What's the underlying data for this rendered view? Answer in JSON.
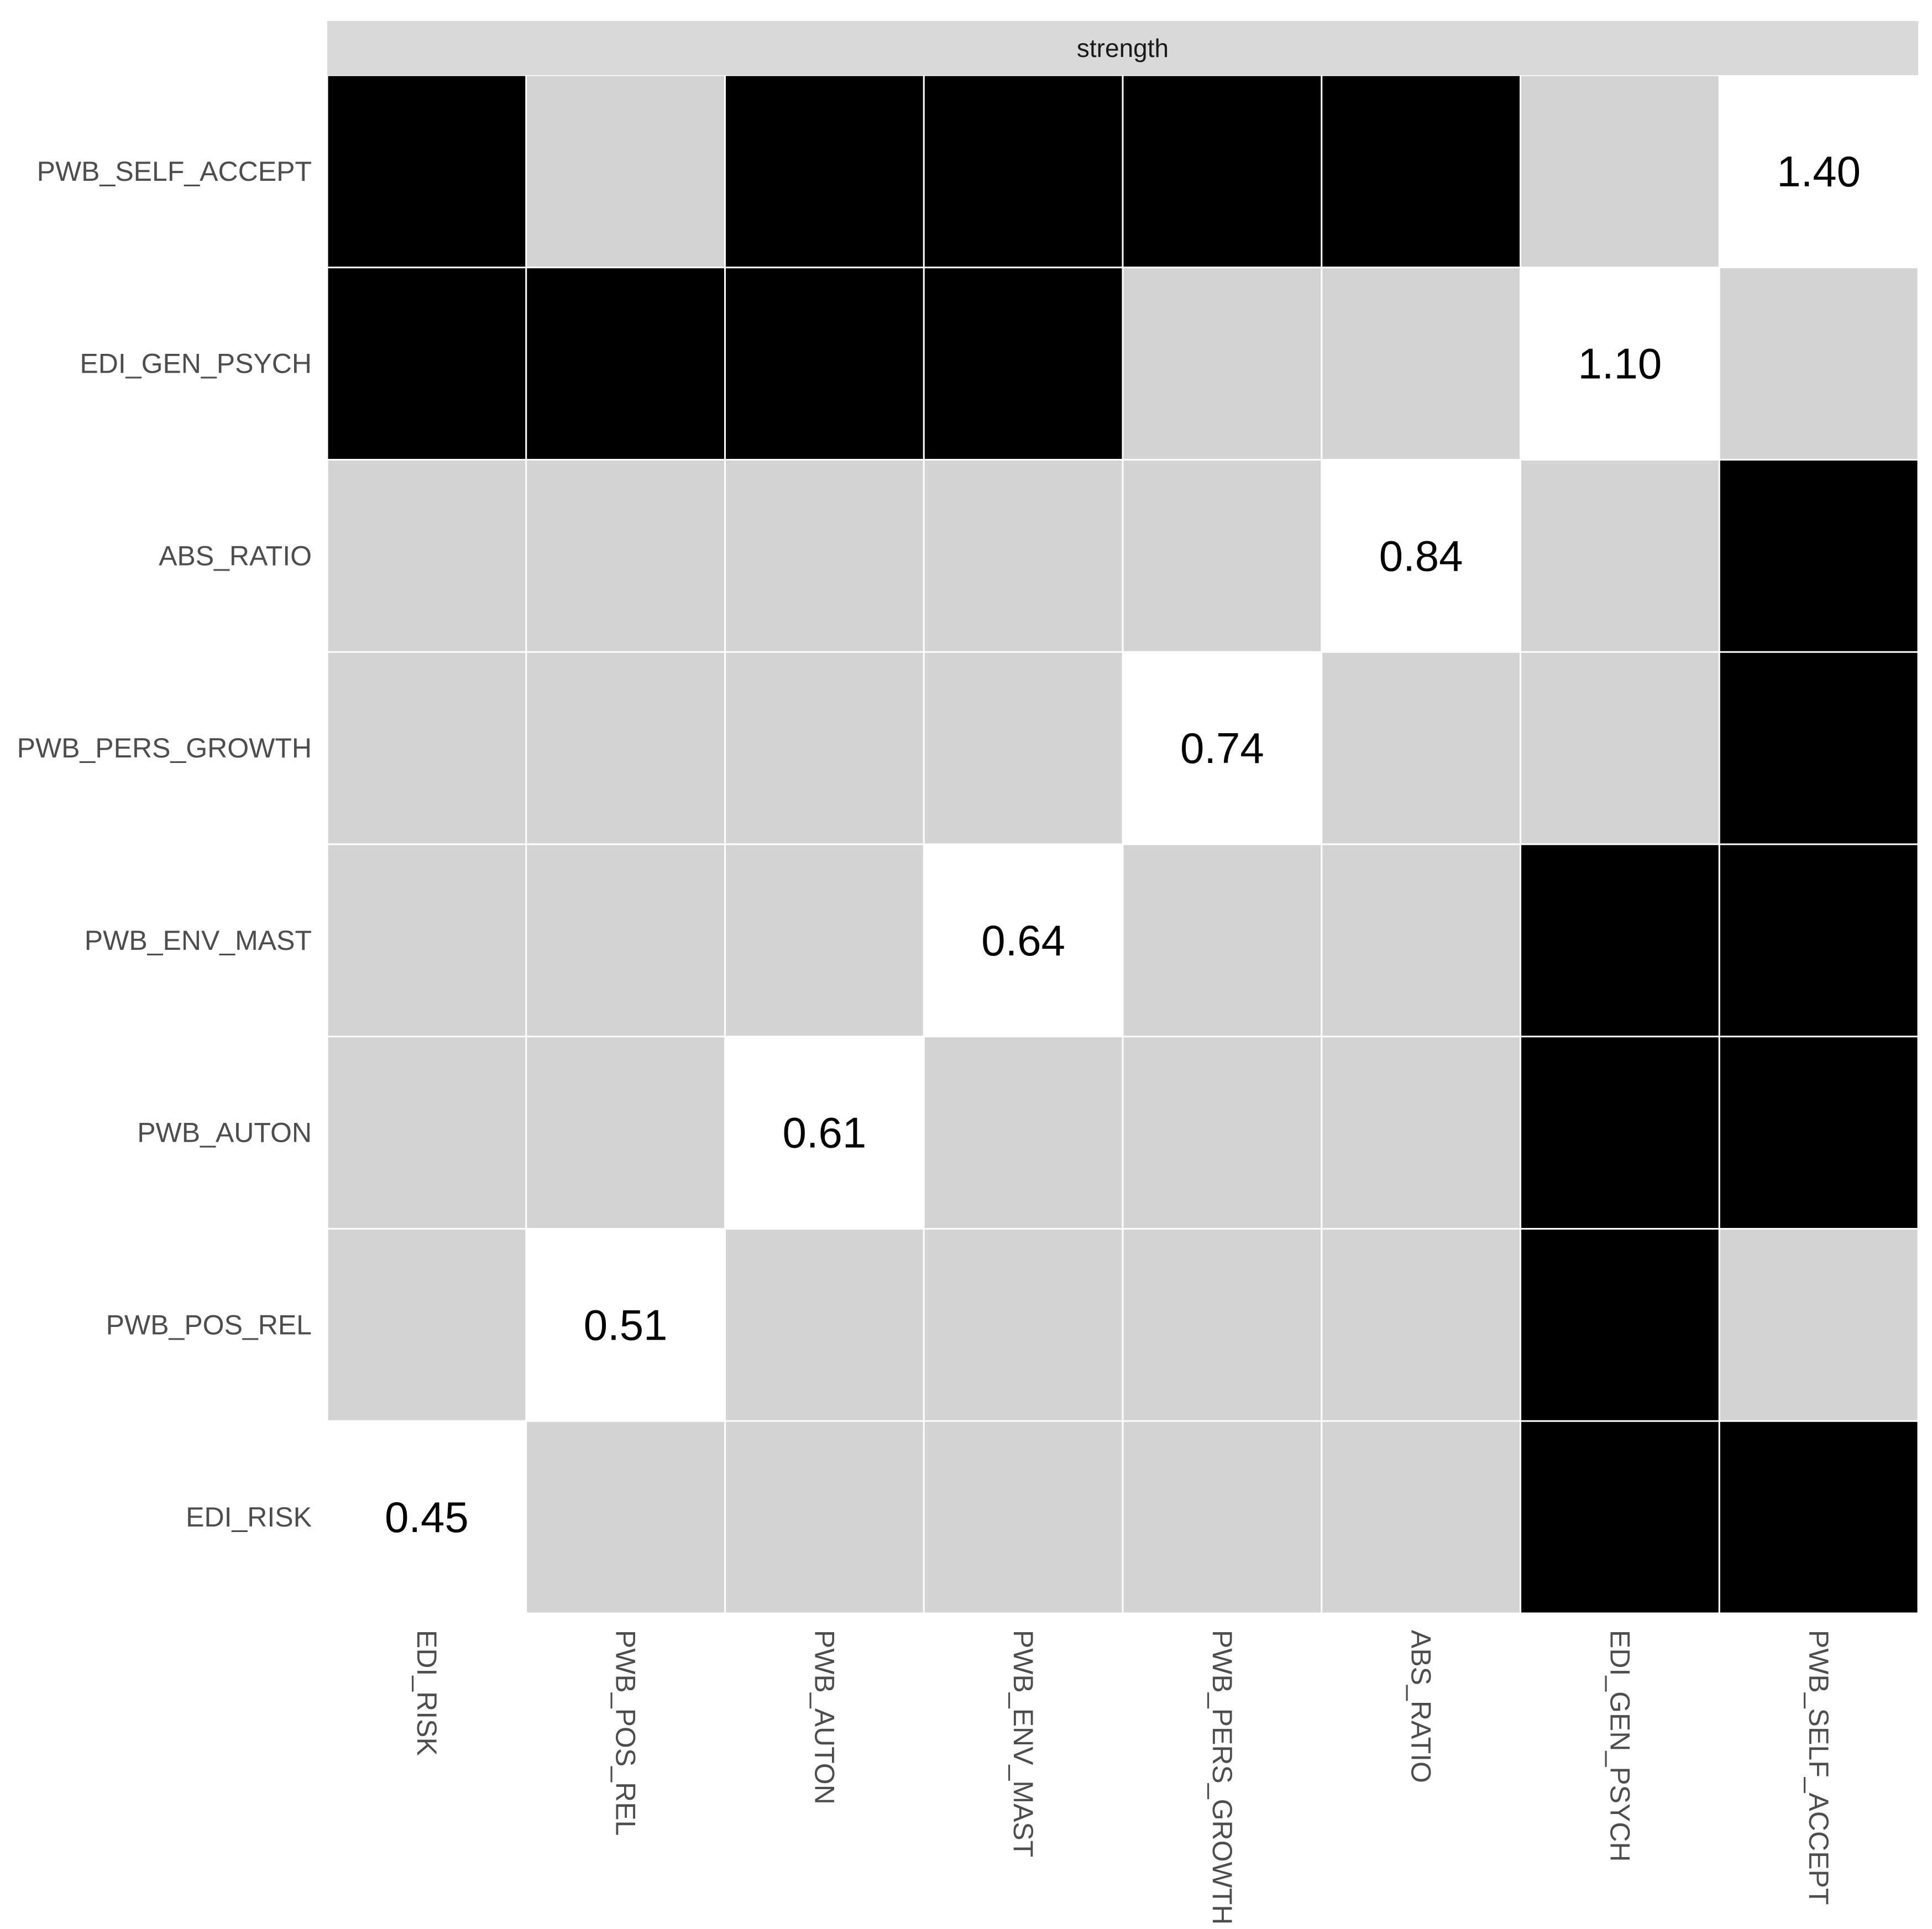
{
  "chart_data": {
    "type": "heatmap",
    "title": "",
    "facet_label": "strength",
    "xlabel": "",
    "ylabel": "",
    "x_categories": [
      "EDI_RISK",
      "PWB_POS_REL",
      "PWB_AUTON",
      "PWB_ENV_MAST",
      "PWB_PERS_GROWTH",
      "ABS_RATIO",
      "EDI_GEN_PSYCH",
      "PWB_SELF_ACCEPT"
    ],
    "y_categories_top_to_bottom": [
      "PWB_SELF_ACCEPT",
      "EDI_GEN_PSYCH",
      "ABS_RATIO",
      "PWB_PERS_GROWTH",
      "PWB_ENV_MAST",
      "PWB_AUTON",
      "PWB_POS_REL",
      "EDI_RISK"
    ],
    "cell_states_legend": {
      "B": "black",
      "G": "gray",
      "W": "white (diagonal, labeled)"
    },
    "matrix_rows_top_to_bottom": [
      [
        "B",
        "G",
        "B",
        "B",
        "B",
        "B",
        "G",
        "W"
      ],
      [
        "B",
        "B",
        "B",
        "B",
        "G",
        "G",
        "W",
        "G"
      ],
      [
        "G",
        "G",
        "G",
        "G",
        "G",
        "W",
        "G",
        "B"
      ],
      [
        "G",
        "G",
        "G",
        "G",
        "W",
        "G",
        "G",
        "B"
      ],
      [
        "G",
        "G",
        "G",
        "W",
        "G",
        "G",
        "B",
        "B"
      ],
      [
        "G",
        "G",
        "W",
        "G",
        "G",
        "G",
        "B",
        "B"
      ],
      [
        "G",
        "W",
        "G",
        "G",
        "G",
        "G",
        "B",
        "G"
      ],
      [
        "W",
        "G",
        "G",
        "G",
        "G",
        "G",
        "B",
        "B"
      ]
    ],
    "diagonal_values": {
      "EDI_RISK": "0.45",
      "PWB_POS_REL": "0.51",
      "PWB_AUTON": "0.61",
      "PWB_ENV_MAST": "0.64",
      "PWB_PERS_GROWTH": "0.74",
      "ABS_RATIO": "0.84",
      "EDI_GEN_PSYCH": "1.10",
      "PWB_SELF_ACCEPT": "1.40"
    },
    "colors": {
      "black": "#000000",
      "gray": "#d3d3d3",
      "white": "#ffffff",
      "strip": "#d9d9d9",
      "grid": "#ffffff"
    },
    "legend": "none",
    "grid": false
  }
}
